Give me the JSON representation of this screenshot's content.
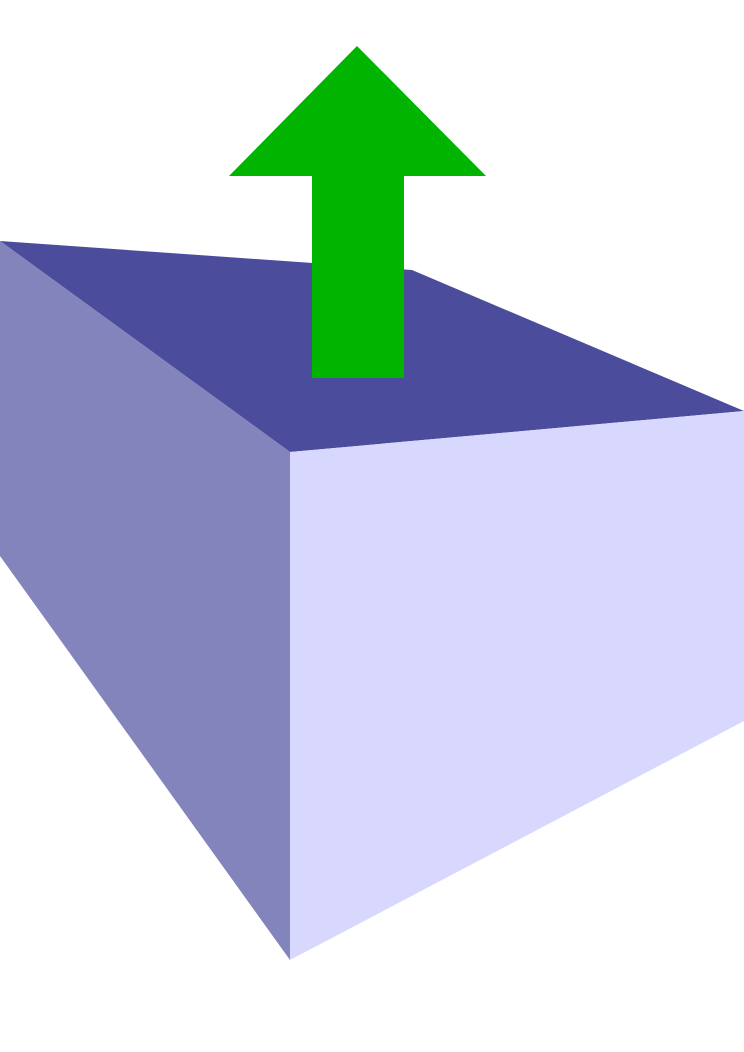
{
  "illustration": {
    "subject": "box-with-up-arrow",
    "colors": {
      "background": "#ffffff",
      "box_top_face": "#4b4c9c",
      "box_left_face": "#8484bc",
      "box_right_face": "#d8d8ff",
      "arrow": "#00b400"
    },
    "arrow_direction": "up"
  }
}
